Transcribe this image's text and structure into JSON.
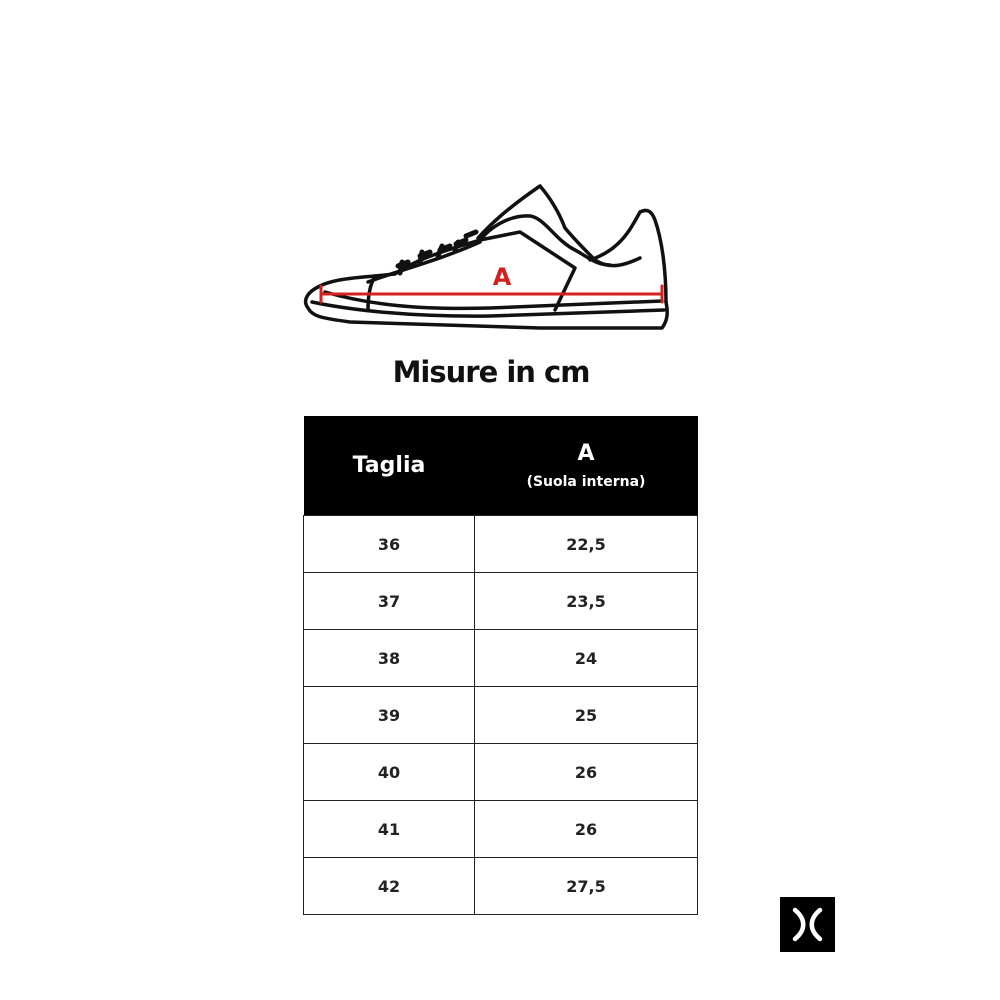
{
  "diagram": {
    "measure_label": "A",
    "measure_color": "#d42020"
  },
  "title": "Misure in cm",
  "table": {
    "headers": {
      "size": "Taglia",
      "measure": "A",
      "measure_sub": "(Suola interna)"
    },
    "rows": [
      {
        "size": "36",
        "a": "22,5"
      },
      {
        "size": "37",
        "a": "23,5"
      },
      {
        "size": "38",
        "a": "24"
      },
      {
        "size": "39",
        "a": "25"
      },
      {
        "size": "40",
        "a": "26"
      },
      {
        "size": "41",
        "a": "26"
      },
      {
        "size": "42",
        "a": "27,5"
      }
    ]
  },
  "logo": {
    "icon": "x-brand-logo"
  }
}
